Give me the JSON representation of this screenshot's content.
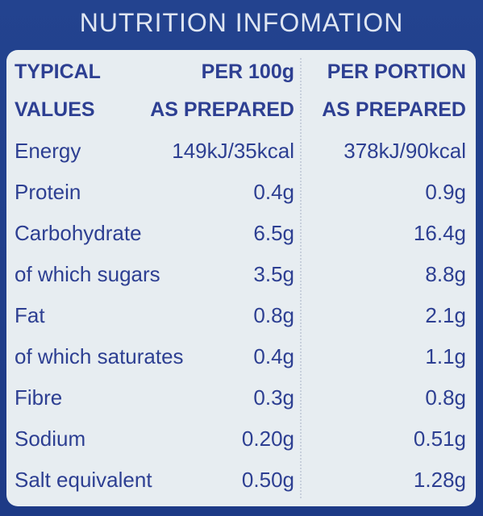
{
  "title": "NUTRITION INFOMATION",
  "table": {
    "header": [
      [
        "TYPICAL",
        "PER 100g",
        "PER PORTION"
      ],
      [
        "VALUES",
        "AS PREPARED",
        "AS PREPARED"
      ]
    ],
    "rows": [
      [
        "Energy",
        "149kJ/35kcal",
        "378kJ/90kcal"
      ],
      [
        "Protein",
        "0.4g",
        "0.9g"
      ],
      [
        "Carbohydrate",
        "6.5g",
        "16.4g"
      ],
      [
        "of which sugars",
        "3.5g",
        "8.8g"
      ],
      [
        "Fat",
        "0.8g",
        "2.1g"
      ],
      [
        "of which saturates",
        "0.4g",
        "1.1g"
      ],
      [
        "Fibre",
        "0.3g",
        "0.8g"
      ],
      [
        "Sodium",
        "0.20g",
        "0.51g"
      ],
      [
        "Salt equivalent",
        "0.50g",
        "1.28g"
      ]
    ]
  }
}
